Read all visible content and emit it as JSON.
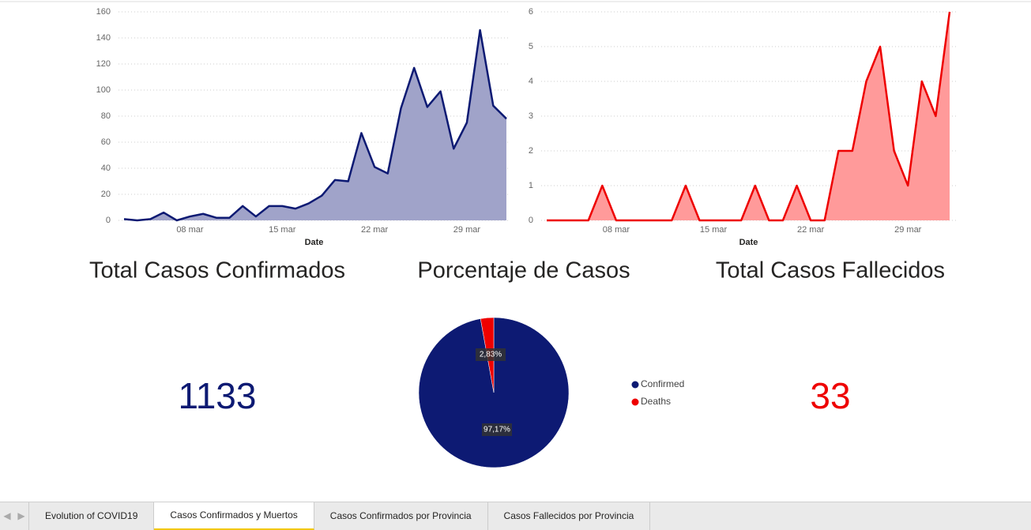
{
  "chart_data": [
    {
      "type": "area",
      "x_label": "Date",
      "categories": [
        null,
        null,
        null,
        null,
        null,
        "08 mar",
        null,
        null,
        null,
        null,
        null,
        null,
        "15 mar",
        null,
        null,
        null,
        null,
        null,
        null,
        "22 mar",
        null,
        null,
        null,
        null,
        null,
        null,
        "29 mar",
        null,
        null,
        null
      ],
      "series": [
        {
          "name": "Confirmed",
          "color": "#0d1a73",
          "fill": "#a0a3c9",
          "values": [
            1,
            0,
            1,
            6,
            0,
            3,
            5,
            2,
            2,
            11,
            3,
            11,
            11,
            9,
            13,
            19,
            31,
            30,
            67,
            41,
            36,
            86,
            117,
            87,
            99,
            55,
            75,
            146,
            88,
            78
          ]
        }
      ],
      "ylim": [
        0,
        160
      ],
      "yticks": [
        0,
        20,
        40,
        60,
        80,
        100,
        120,
        140,
        160
      ],
      "grid": true
    },
    {
      "type": "area",
      "x_label": "Date",
      "categories": [
        null,
        null,
        null,
        null,
        null,
        "08 mar",
        null,
        null,
        null,
        null,
        null,
        null,
        "15 mar",
        null,
        null,
        null,
        null,
        null,
        null,
        "22 mar",
        null,
        null,
        null,
        null,
        null,
        null,
        "29 mar",
        null,
        null,
        null
      ],
      "series": [
        {
          "name": "Deaths",
          "color": "#ee0000",
          "fill": "#ff9a9a",
          "values": [
            0,
            0,
            0,
            0,
            1,
            0,
            0,
            0,
            0,
            0,
            1,
            0,
            0,
            0,
            0,
            1,
            0,
            0,
            1,
            0,
            0,
            2,
            2,
            4,
            5,
            2,
            1,
            4,
            3,
            6
          ]
        }
      ],
      "ylim": [
        0,
        6
      ],
      "yticks": [
        0,
        1,
        2,
        3,
        4,
        5,
        6
      ],
      "grid": true
    },
    {
      "type": "pie",
      "title": "Porcentaje de Casos",
      "categories": [
        "Confirmed",
        "Deaths"
      ],
      "values": [
        97.17,
        2.83
      ],
      "value_labels": [
        "97,17%",
        "2,83%"
      ],
      "colors": [
        "#0d1a73",
        "#ee0000"
      ]
    }
  ],
  "cards": [
    {
      "title": "Total Casos Confirmados",
      "value": 1133,
      "color": "#0d1a73"
    },
    {
      "title": "Total Casos Fallecidos",
      "value": 33,
      "color": "#ee0000"
    }
  ],
  "tabs": {
    "items": [
      "Evolution of COVID19",
      "Casos Confirmados y Muertos",
      "Casos Confirmados por Provincia",
      "Casos Fallecidos por Provincia"
    ],
    "active": 1
  }
}
